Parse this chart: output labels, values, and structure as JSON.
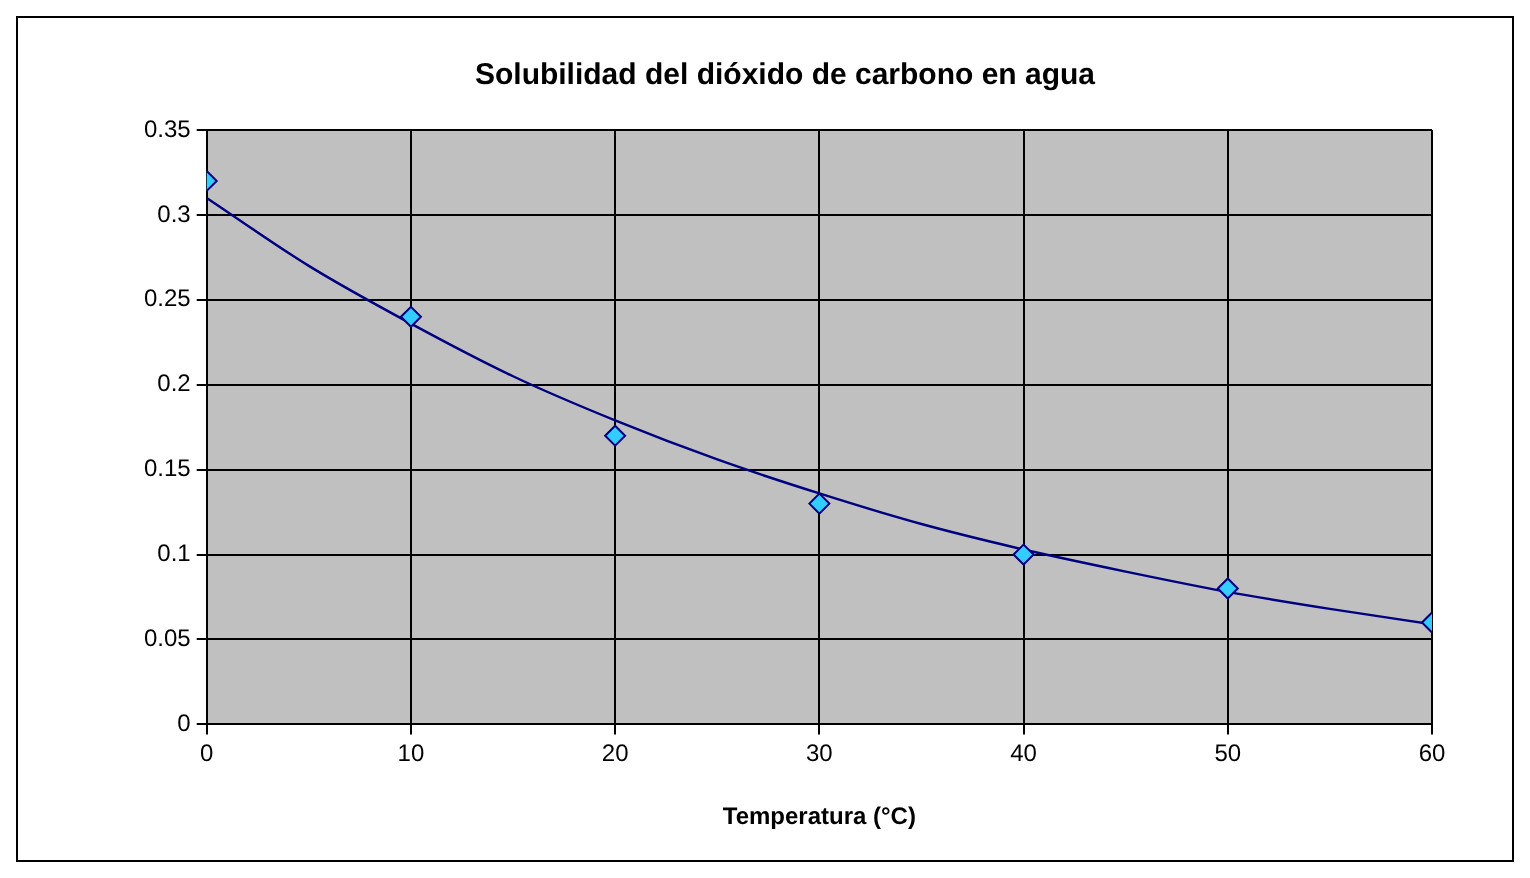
{
  "chart_data": {
    "type": "scatter",
    "title": "Solubilidad del dióxido de carbono en agua",
    "xlabel": "Temperatura (°C)",
    "series": [
      {
        "color": "#33ccff",
        "marker": "diamond",
        "x": [
          0,
          10,
          20,
          30,
          40,
          50,
          60
        ],
        "values": [
          0.32,
          0.24,
          0.17,
          0.13,
          0.1,
          0.08,
          0.06
        ]
      },
      {
        "type": "line",
        "color": "#000080",
        "marker": "none",
        "line_style": "solid",
        "x": [
          0,
          5,
          10,
          15,
          20,
          25,
          30,
          35,
          40,
          45,
          50,
          55,
          60
        ],
        "values": [
          0.31,
          0.27,
          0.236,
          0.205,
          0.179,
          0.156,
          0.136,
          0.118,
          0.103,
          0.09,
          0.078,
          0.068,
          0.059
        ]
      }
    ],
    "xlim": [
      0,
      60
    ],
    "xticks": [
      0,
      10,
      20,
      30,
      40,
      50,
      60
    ],
    "ylim": [
      0,
      0.35
    ],
    "yticks": [
      0,
      0.05,
      0.1,
      0.15,
      0.2,
      0.25,
      0.3,
      0.35
    ],
    "grid": true
  }
}
